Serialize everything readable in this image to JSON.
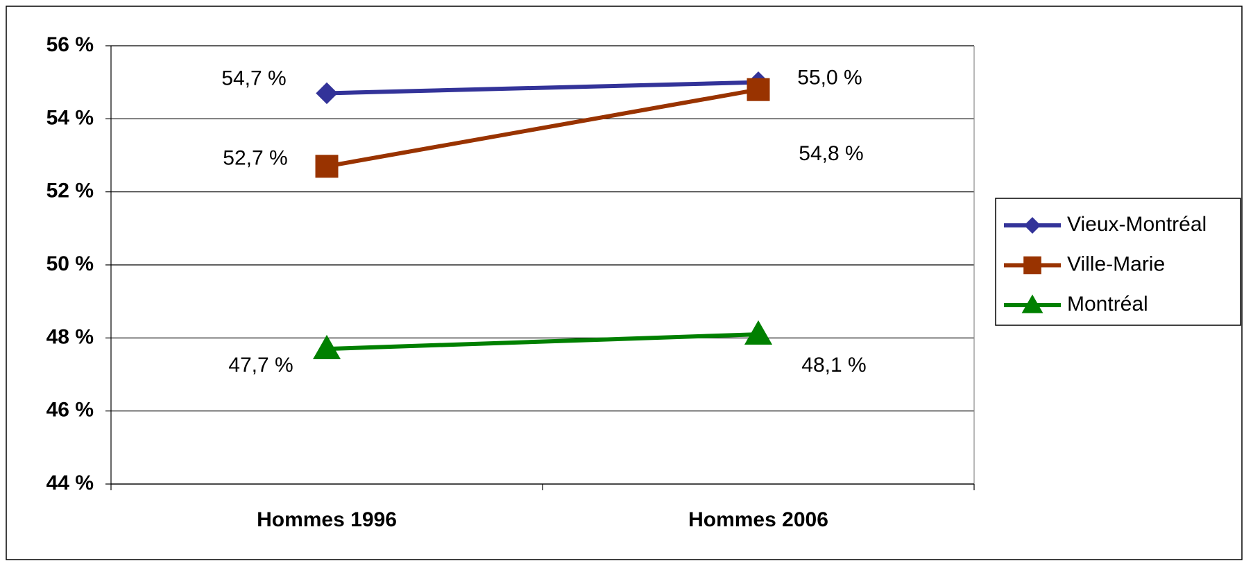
{
  "chart_data": {
    "type": "line",
    "categories": [
      "Hommes 1996",
      "Hommes 2006"
    ],
    "series": [
      {
        "name": "Vieux-Montréal",
        "color": "#333399",
        "marker": "diamond",
        "values": [
          54.7,
          55.0
        ],
        "value_labels": [
          "54,7  %",
          "55,0  %"
        ]
      },
      {
        "name": "Ville-Marie",
        "color": "#993300",
        "marker": "square",
        "values": [
          52.7,
          54.8
        ],
        "value_labels": [
          "52,7  %",
          "54,8  %"
        ]
      },
      {
        "name": "Montréal",
        "color": "#008000",
        "marker": "triangle",
        "values": [
          47.7,
          48.1
        ],
        "value_labels": [
          "47,7  %",
          "48,1  %"
        ]
      }
    ],
    "ylim": [
      44,
      56
    ],
    "yticks": [
      {
        "value": 44,
        "label": "44 %"
      },
      {
        "value": 46,
        "label": "46 %"
      },
      {
        "value": 48,
        "label": "48 %"
      },
      {
        "value": 50,
        "label": "50 %"
      },
      {
        "value": 52,
        "label": "52 %"
      },
      {
        "value": 54,
        "label": "54 %"
      },
      {
        "value": 56,
        "label": "56 %"
      }
    ],
    "grid": true,
    "legend": "right"
  }
}
